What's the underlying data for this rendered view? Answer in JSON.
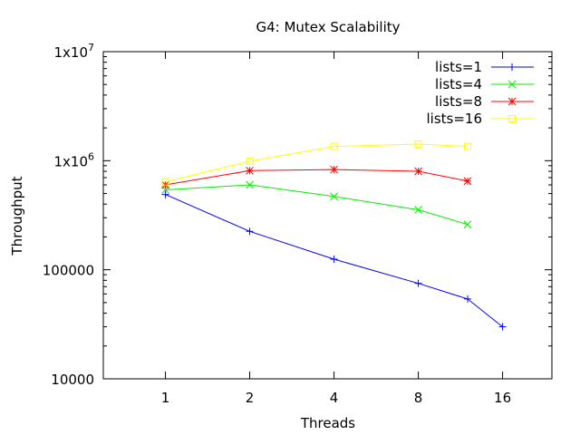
{
  "chart_data": {
    "type": "line",
    "title": "G4: Mutex Scalability",
    "xlabel": "Threads",
    "ylabel": "Throughput",
    "x_scale": "log2",
    "y_scale": "log10",
    "xlim": [
      0.6,
      24
    ],
    "ylim": [
      10000,
      10000000
    ],
    "x_ticks": [
      {
        "value": 1,
        "label": "1"
      },
      {
        "value": 2,
        "label": "2"
      },
      {
        "value": 4,
        "label": "4"
      },
      {
        "value": 8,
        "label": "8"
      },
      {
        "value": 16,
        "label": "16"
      }
    ],
    "y_ticks": [
      {
        "value": 10000,
        "label": "10000"
      },
      {
        "value": 100000,
        "label": "100000"
      },
      {
        "value": 1000000,
        "label": "1x10",
        "exp": "6"
      },
      {
        "value": 10000000,
        "label": "1x10",
        "exp": "7"
      }
    ],
    "grid": false,
    "legend_position": "top-right",
    "series": [
      {
        "name": "lists=1",
        "color": "#0000ff",
        "marker": "plus",
        "points": [
          [
            1,
            490000
          ],
          [
            2,
            225000
          ],
          [
            4,
            125000
          ],
          [
            8,
            75000
          ],
          [
            12,
            54000
          ],
          [
            16,
            30000
          ]
        ]
      },
      {
        "name": "lists=4",
        "color": "#00ee00",
        "marker": "x",
        "points": [
          [
            1,
            540000
          ],
          [
            2,
            600000
          ],
          [
            4,
            470000
          ],
          [
            8,
            355000
          ],
          [
            12,
            260000
          ]
        ]
      },
      {
        "name": "lists=8",
        "color": "#ff0000",
        "marker": "star",
        "points": [
          [
            1,
            600000
          ],
          [
            2,
            810000
          ],
          [
            4,
            830000
          ],
          [
            8,
            800000
          ],
          [
            12,
            650000
          ]
        ]
      },
      {
        "name": "lists=16",
        "color": "#ffff00",
        "marker": "square",
        "points": [
          [
            1,
            640000
          ],
          [
            2,
            990000
          ],
          [
            4,
            1350000
          ],
          [
            8,
            1420000
          ],
          [
            12,
            1350000
          ]
        ]
      }
    ]
  }
}
